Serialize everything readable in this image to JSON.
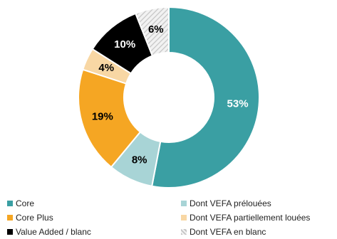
{
  "chart_data": {
    "type": "pie",
    "donut": true,
    "slices": [
      {
        "name": "Core",
        "value": 53,
        "label": "53%",
        "color": "#3a9fa3",
        "label_color": "#ffffff",
        "pattern": "solid"
      },
      {
        "name": "Dont VEFA prélouées",
        "value": 8,
        "label": "8%",
        "color": "#a8d4d6",
        "label_color": "#000000",
        "pattern": "solid"
      },
      {
        "name": "Core Plus",
        "value": 19,
        "label": "19%",
        "color": "#f5a623",
        "label_color": "#000000",
        "pattern": "solid"
      },
      {
        "name": "Dont VEFA partiellement louées",
        "value": 4,
        "label": "4%",
        "color": "#f8d7a4",
        "label_color": "#000000",
        "pattern": "solid"
      },
      {
        "name": "Value Added / blanc",
        "value": 10,
        "label": "10%",
        "color": "#000000",
        "label_color": "#ffffff",
        "pattern": "solid"
      },
      {
        "name": "Dont VEFA en blanc",
        "value": 6,
        "label": "6%",
        "color": "#d0d0d0",
        "label_color": "#000000",
        "pattern": "hatched"
      }
    ],
    "legend": {
      "placement": "bottom",
      "columns": [
        [
          "Core",
          "Core Plus",
          "Value Added / blanc"
        ],
        [
          "Dont VEFA prélouées",
          "Dont VEFA partiellement louées",
          "Dont VEFA en blanc"
        ]
      ]
    }
  }
}
